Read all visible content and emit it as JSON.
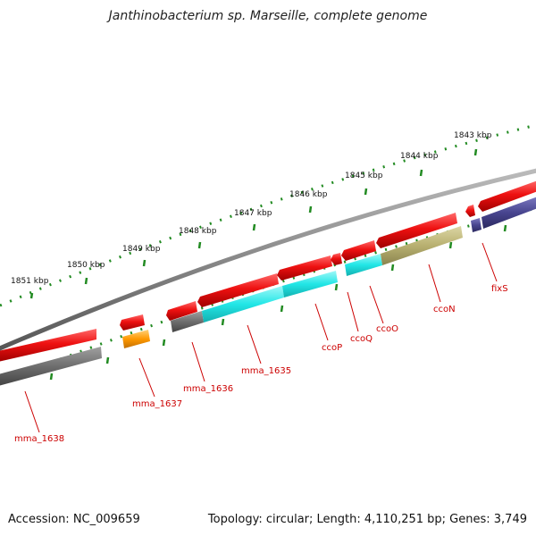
{
  "title": "Janthinobacterium sp. Marseille, complete genome",
  "footer": {
    "accession": "Accession: NC_009659",
    "stats": "Topology: circular; Length: 4,110,251 bp; Genes: 3,749"
  },
  "colors": {
    "backbone": "#888888",
    "tick": "#228b22",
    "cds_forward": "#ee1111",
    "label": "#cc0000",
    "gene_gray": "#6e6e6e",
    "gene_orange": "#ff9900",
    "gene_cyan": "#22e6e6",
    "gene_olive": "#b8b070",
    "gene_purple": "#48458f"
  },
  "scale_labels": [
    "1851 kbp",
    "1850 kbp",
    "1849 kbp",
    "1848 kbp",
    "1847 kbp",
    "1846 kbp",
    "1845 kbp",
    "1844 kbp",
    "1843 kbp"
  ],
  "genes": [
    "mma_1638",
    "mma_1637",
    "mma_1636",
    "mma_1635",
    "ccoP",
    "ccoQ",
    "ccoO",
    "ccoN",
    "fixS"
  ]
}
